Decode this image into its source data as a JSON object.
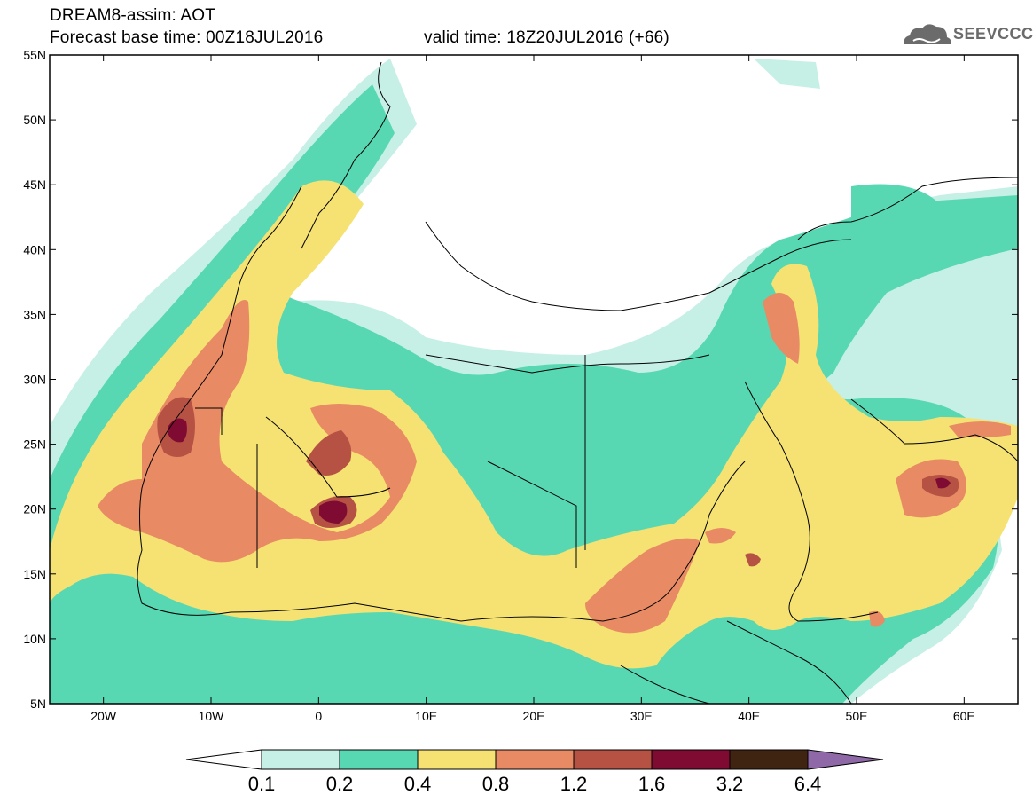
{
  "header": {
    "line1": "DREAM8-assim: AOT",
    "line2": "Forecast base time: 00Z18JUL2016",
    "line3": "valid time: 18Z20JUL2016 (+66)"
  },
  "logo": {
    "text": "SEEVCCC",
    "icon": "cloud-logo-icon",
    "color": "#6b6b6b"
  },
  "map": {
    "lat_labels": [
      "55N",
      "50N",
      "45N",
      "40N",
      "35N",
      "30N",
      "25N",
      "20N",
      "15N",
      "10N",
      "5N"
    ],
    "lon_labels": [
      "20W",
      "10W",
      "0",
      "10E",
      "20E",
      "30E",
      "40E",
      "50E",
      "60E"
    ],
    "lat_range": [
      5,
      55
    ],
    "lon_range": [
      -25,
      65
    ]
  },
  "colorbar": {
    "labels": [
      "0.1",
      "0.2",
      "0.4",
      "0.8",
      "1.2",
      "1.6",
      "3.2",
      "6.4"
    ],
    "colors": [
      "#c6f0e6",
      "#58d8b2",
      "#f5e273",
      "#e88a64",
      "#b55244",
      "#7f0a32",
      "#3f2412",
      "#8f68a8"
    ],
    "under_color": "#ffffff"
  }
}
